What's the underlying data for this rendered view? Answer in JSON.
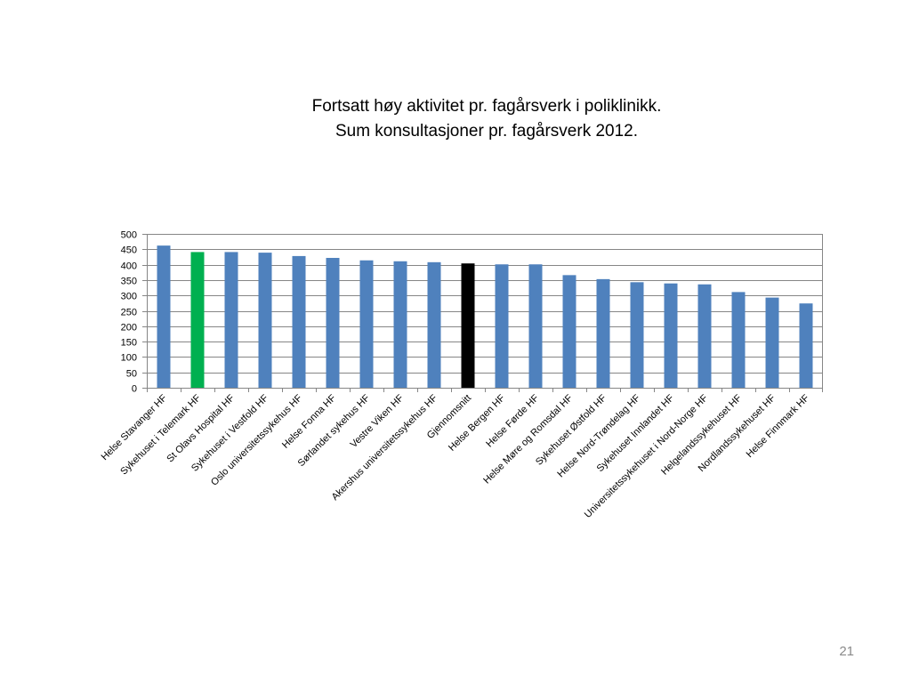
{
  "slide": {
    "title_line1": "Fortsatt høy aktivitet pr. fagårsverk i poliklinikk.",
    "title_line2": "Sum konsultasjoner pr. fagårsverk 2012.",
    "page_number": "21"
  },
  "chart_data": {
    "type": "bar",
    "title": "",
    "xlabel": "",
    "ylabel": "",
    "ylim": [
      0,
      500
    ],
    "yticks": [
      0,
      50,
      100,
      150,
      200,
      250,
      300,
      350,
      400,
      450,
      500
    ],
    "grid": true,
    "legend": "none",
    "categories": [
      "Helse Stavanger HF",
      "Sykehuset i Telemark HF",
      "St Olavs Hospital HF",
      "Sykehuset i Vestfold HF",
      "Oslo universitetssykehus HF",
      "Helse Fonna HF",
      "Sørlandet sykehus HF",
      "Vestre Viken HF",
      "Akershus universitetssykehus HF",
      "Gjennomsnitt",
      "Helse Bergen HF",
      "Helse Førde HF",
      "Helse Møre og Romsdal HF",
      "Sykehuset Østfold HF",
      "Helse Nord-Trøndelag HF",
      "Sykehuset Innlandet HF",
      "Universitetssykehuset i Nord-Norge HF",
      "Helgelandssykehuset HF",
      "Nordlandssykehuset HF",
      "Helse Finnmark HF"
    ],
    "values": [
      462,
      441,
      441,
      439,
      428,
      422,
      414,
      411,
      408,
      404,
      401,
      401,
      366,
      353,
      343,
      339,
      336,
      311,
      293,
      274
    ],
    "colors": {
      "default": "#4f81bd",
      "highlight": "#00b050",
      "average": "#000000",
      "grid": "#868686",
      "axis": "#868686"
    },
    "bar_colors": [
      "default",
      "highlight",
      "default",
      "default",
      "default",
      "default",
      "default",
      "default",
      "default",
      "average",
      "default",
      "default",
      "default",
      "default",
      "default",
      "default",
      "default",
      "default",
      "default",
      "default"
    ]
  }
}
